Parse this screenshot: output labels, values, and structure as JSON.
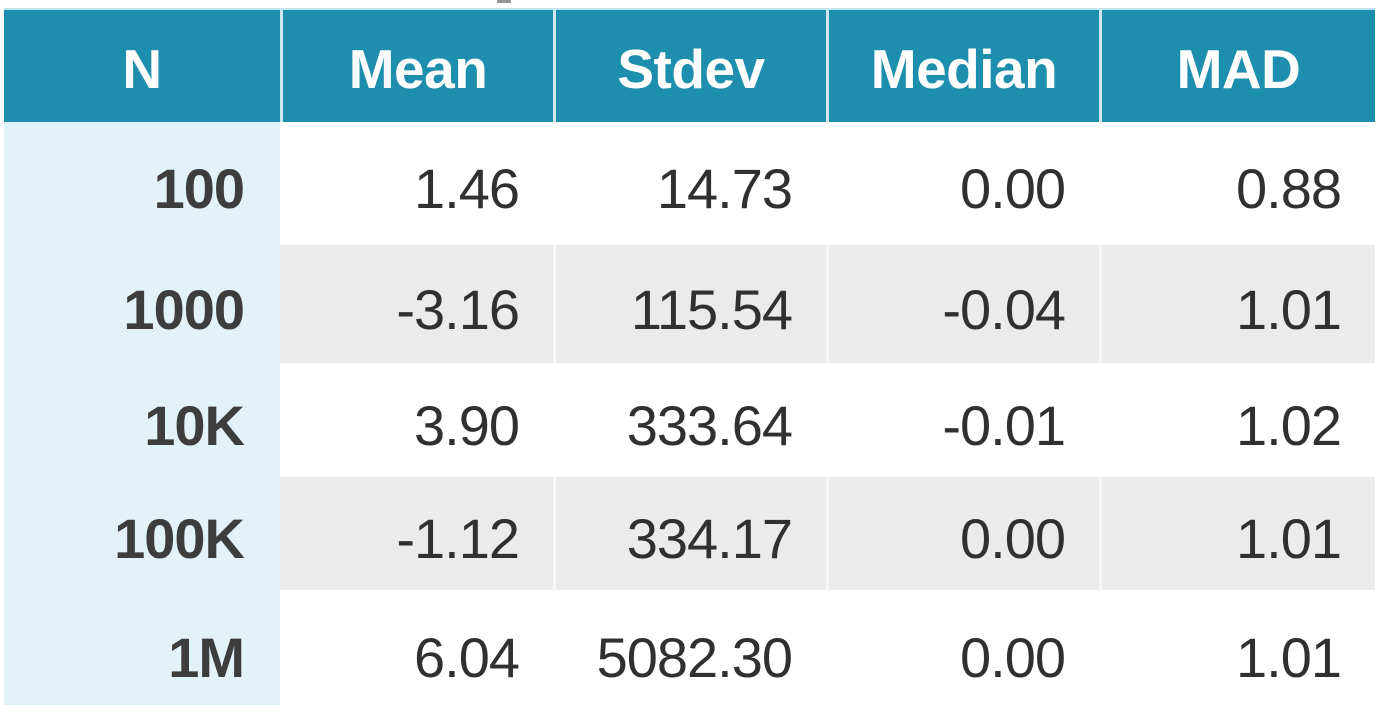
{
  "table": {
    "columns": [
      "N",
      "Mean",
      "Stdev",
      "Median",
      "MAD"
    ],
    "rows": [
      [
        "100",
        "1.46",
        "14.73",
        "0.00",
        "0.88"
      ],
      [
        "1000",
        "-3.16",
        "115.54",
        "-0.04",
        "1.01"
      ],
      [
        "10K",
        "3.90",
        "333.64",
        "-0.01",
        "1.02"
      ],
      [
        "100K",
        "-1.12",
        "334.17",
        "0.00",
        "1.01"
      ],
      [
        "1M",
        "6.04",
        "5082.30",
        "0.00",
        "1.01"
      ]
    ]
  },
  "chart_data": {
    "type": "table",
    "title": "",
    "columns": [
      "N",
      "Mean",
      "Stdev",
      "Median",
      "MAD"
    ],
    "rows": [
      {
        "N": "100",
        "Mean": 1.46,
        "Stdev": 14.73,
        "Median": 0.0,
        "MAD": 0.88
      },
      {
        "N": "1000",
        "Mean": -3.16,
        "Stdev": 115.54,
        "Median": -0.04,
        "MAD": 1.01
      },
      {
        "N": "10K",
        "Mean": 3.9,
        "Stdev": 333.64,
        "Median": -0.01,
        "MAD": 1.02
      },
      {
        "N": "100K",
        "Mean": -1.12,
        "Stdev": 334.17,
        "Median": 0.0,
        "MAD": 1.01
      },
      {
        "N": "1M",
        "Mean": 6.04,
        "Stdev": 5082.3,
        "Median": 0.0,
        "MAD": 1.01
      }
    ],
    "layout_hints": {
      "header_style": "teal band, white bold centered labels",
      "first_column_style": "light blue band, bold right-aligned",
      "row_striping": "white / light gray alternating",
      "value_alignment": "right"
    },
    "colors": {
      "header_background": "#1E8EAE",
      "first_column_background": "#E3F2F9",
      "alt_row_background": "#EBEBEB",
      "header_text": "#FFFFFF",
      "body_text": "#303030",
      "n_column_text": "#3D3D3D"
    }
  }
}
